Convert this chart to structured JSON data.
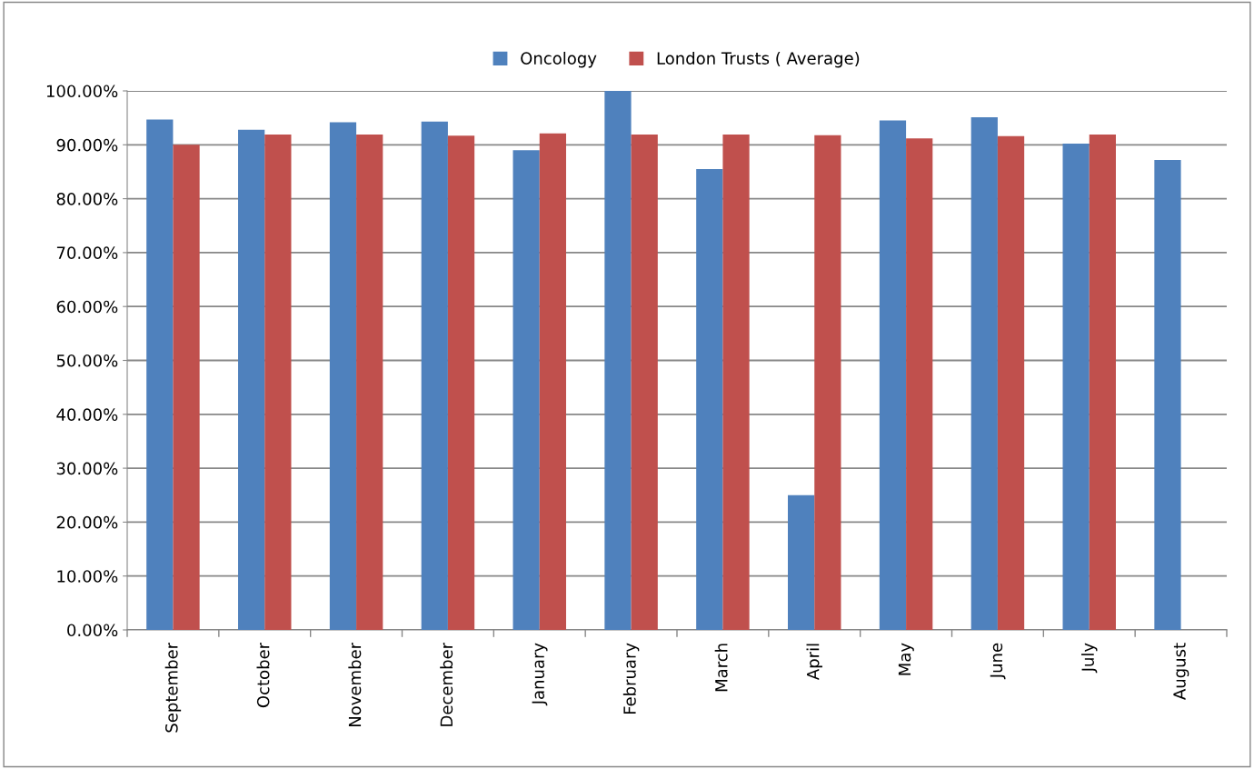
{
  "chart_data": {
    "type": "bar",
    "categories": [
      "September",
      "October",
      "November",
      "December",
      "January",
      "February",
      "March",
      "April",
      "May",
      "June",
      "July",
      "August"
    ],
    "series": [
      {
        "name": "Oncology",
        "color": "#4f81bd",
        "values": [
          94.7,
          92.8,
          94.2,
          94.3,
          89.0,
          100,
          85.5,
          25.0,
          94.5,
          95.1,
          90.2,
          87.2
        ]
      },
      {
        "name": "London Trusts ( Average)",
        "color": "#c0504d",
        "values": [
          90.0,
          91.9,
          91.9,
          91.7,
          92.1,
          91.9,
          91.9,
          91.8,
          91.2,
          91.6,
          91.9,
          null
        ]
      }
    ],
    "ylim": [
      0,
      100
    ],
    "yticks": [
      {
        "value": 0,
        "label": "0.00%"
      },
      {
        "value": 10,
        "label": "10.00%"
      },
      {
        "value": 20,
        "label": "20.00%"
      },
      {
        "value": 30,
        "label": "30.00%"
      },
      {
        "value": 40,
        "label": "40.00%"
      },
      {
        "value": 50,
        "label": "50.00%"
      },
      {
        "value": 60,
        "label": "60.00%"
      },
      {
        "value": 70,
        "label": "70.00%"
      },
      {
        "value": 80,
        "label": "80.00%"
      },
      {
        "value": 90,
        "label": "90.00%"
      },
      {
        "value": 100,
        "label": "100.00%"
      }
    ],
    "grid": "y",
    "legend": "top"
  }
}
